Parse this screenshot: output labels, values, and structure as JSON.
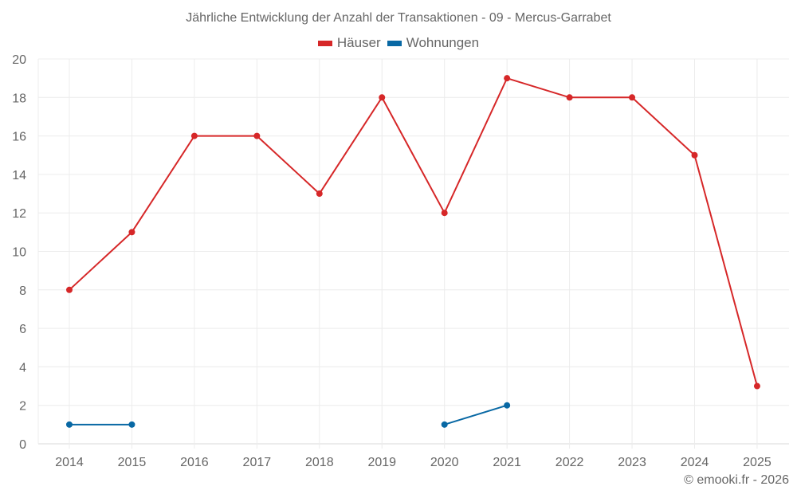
{
  "chart_data": {
    "type": "line",
    "title": "Jährliche Entwicklung der Anzahl der Transaktionen - 09 - Mercus-Garrabet",
    "xlabel": "",
    "ylabel": "",
    "categories": [
      "2014",
      "2015",
      "2016",
      "2017",
      "2018",
      "2019",
      "2020",
      "2021",
      "2022",
      "2023",
      "2024",
      "2025"
    ],
    "series": [
      {
        "name": "Häuser",
        "color": "#d62728",
        "values": [
          8,
          11,
          16,
          16,
          13,
          18,
          12,
          19,
          18,
          18,
          15,
          3
        ]
      },
      {
        "name": "Wohnungen",
        "color": "#0868a4",
        "values": [
          1,
          1,
          null,
          null,
          null,
          null,
          1,
          2,
          null,
          null,
          null,
          null
        ]
      }
    ],
    "ylim": [
      0,
      20
    ],
    "yticks": [
      0,
      2,
      4,
      6,
      8,
      10,
      12,
      14,
      16,
      18,
      20
    ],
    "grid": true,
    "legend_position": "top-center"
  },
  "legend": {
    "items": [
      {
        "label": "Häuser"
      },
      {
        "label": "Wohnungen"
      }
    ]
  },
  "credit": "© emooki.fr - 2026"
}
